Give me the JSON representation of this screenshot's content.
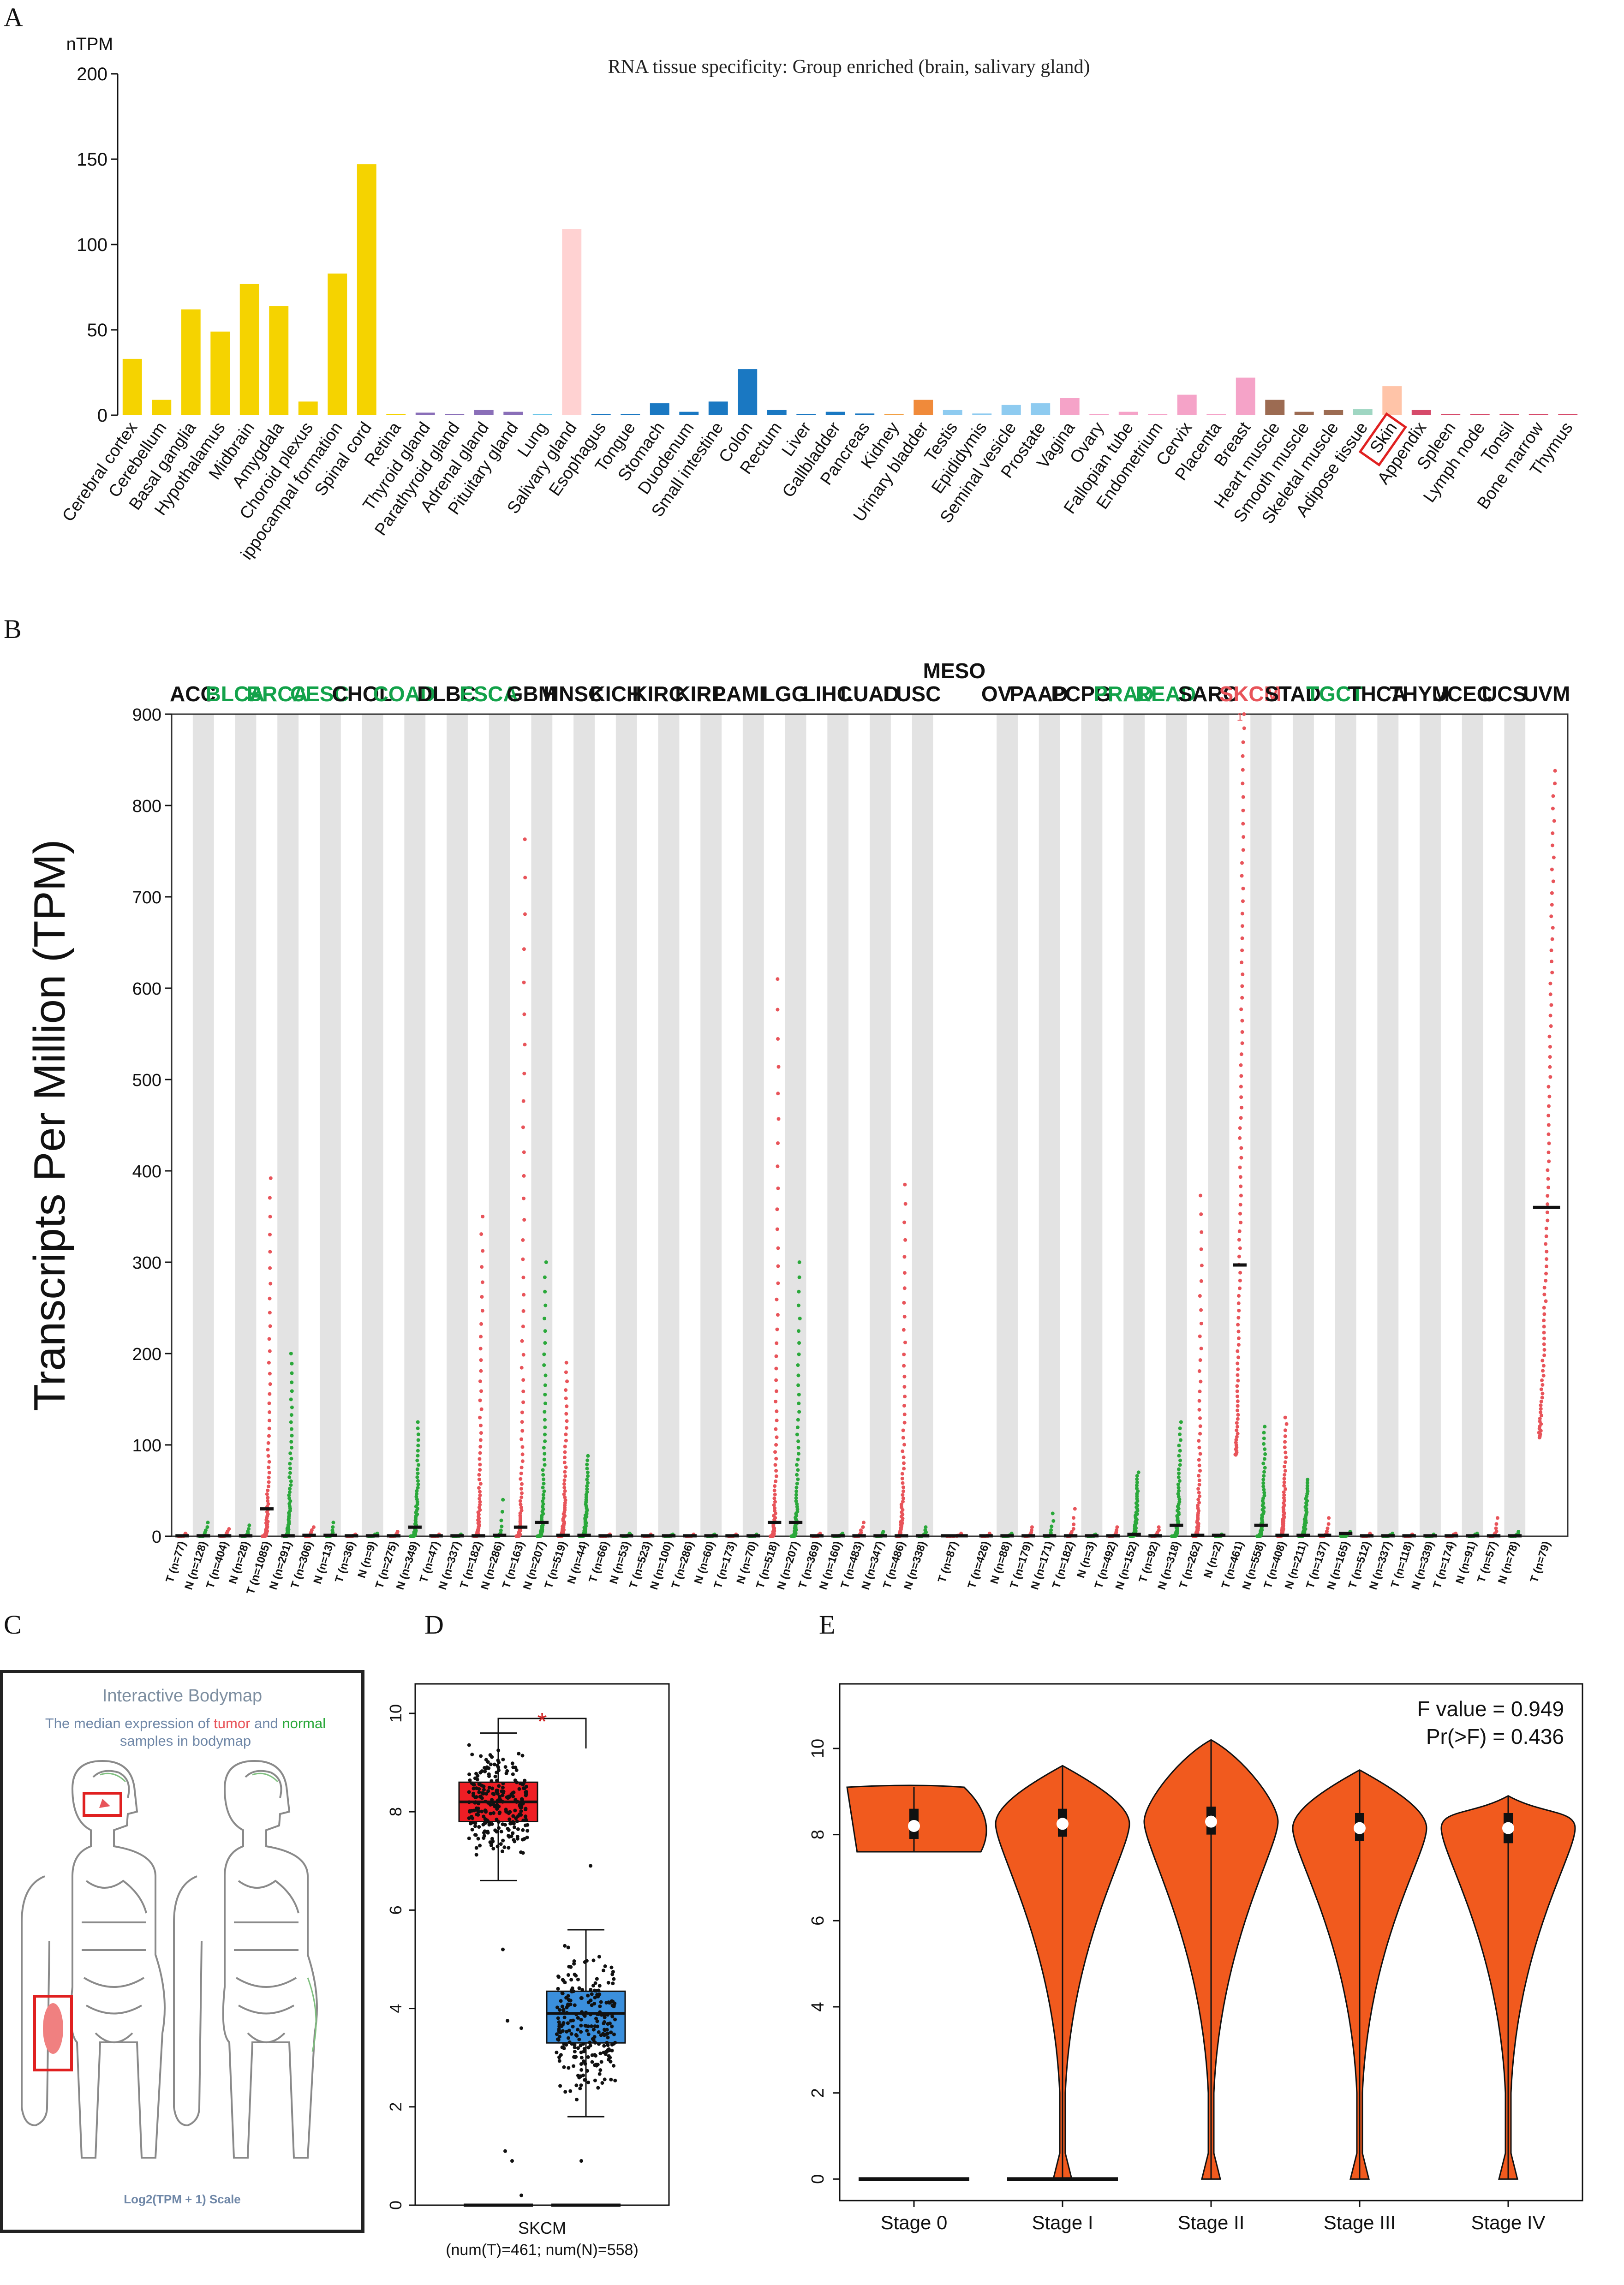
{
  "panels": {
    "a": "A",
    "b": "B",
    "c": "C",
    "d": "D",
    "e": "E"
  },
  "colors": {
    "brain": "#f5d300",
    "salivary": "#ffd2d2",
    "gi": "#1a78c2",
    "tumor_dots": "#e8545a",
    "normal_dots": "#2aa83a",
    "green_label": "#13a24a",
    "red_label": "#e8545a",
    "box_tumor": "#ee1e25",
    "box_normal": "#3b8fdc",
    "violin": "#f15a1e"
  },
  "chart_data": [
    {
      "type": "bar",
      "title": "RNA tissue specificity: Group enriched (brain, salivary gland)",
      "ylabel": "nTPM",
      "ylim": [
        0,
        200
      ],
      "yticks": [
        0,
        50,
        100,
        150,
        200
      ],
      "highlighted_category": "Skin",
      "categories": [
        "Cerebral cortex",
        "Cerebellum",
        "Basal ganglia",
        "Hypothalamus",
        "Midbrain",
        "Amygdala",
        "Choroid plexus",
        "Hippocampal formation",
        "Spinal cord",
        "Retina",
        "Thyroid gland",
        "Parathyroid gland",
        "Adrenal gland",
        "Pituitary gland",
        "Lung",
        "Salivary gland",
        "Esophagus",
        "Tongue",
        "Stomach",
        "Duodenum",
        "Small intestine",
        "Colon",
        "Rectum",
        "Liver",
        "Gallbladder",
        "Pancreas",
        "Kidney",
        "Urinary bladder",
        "Testis",
        "Epididymis",
        "Seminal vesicle",
        "Prostate",
        "Vagina",
        "Ovary",
        "Fallopian tube",
        "Endometrium",
        "Cervix",
        "Placenta",
        "Breast",
        "Heart muscle",
        "Smooth muscle",
        "Skeletal muscle",
        "Adipose tissue",
        "Skin",
        "Appendix",
        "Spleen",
        "Lymph node",
        "Tonsil",
        "Bone marrow",
        "Thymus"
      ],
      "tick_labels": [
        "Cerebral cortex",
        "Cerebellum",
        "Basal ganglia",
        "Hypothalamus",
        "Midbrain",
        "Amygdala",
        "Choroid plexus",
        "ippocampal formation",
        "Spinal cord",
        "Retina",
        "Thyroid gland",
        "Parathyroid gland",
        "Adrenal gland",
        "Pituitary gland",
        "Lung",
        "Salivary gland",
        "Esophagus",
        "Tongue",
        "Stomach",
        "Duodenum",
        "Small intestine",
        "Colon",
        "Rectum",
        "Liver",
        "Gallbladder",
        "Pancreas",
        "Kidney",
        "Urinary bladder",
        "Testis",
        "Epididymis",
        "Seminal vesicle",
        "Prostate",
        "Vagina",
        "Ovary",
        "Fallopian tube",
        "Endometrium",
        "Cervix",
        "Placenta",
        "Breast",
        "Heart muscle",
        "Smooth muscle",
        "Skeletal muscle",
        "Adipose tissue",
        "Skin",
        "Appendix",
        "Spleen",
        "Lymph node",
        "Tonsil",
        "Bone marrow",
        "Thymus"
      ],
      "values": [
        33,
        9,
        62,
        49,
        77,
        64,
        8,
        83,
        147,
        0,
        1.5,
        0.5,
        3,
        2,
        0.5,
        109,
        0.5,
        0.5,
        7,
        2,
        8,
        27,
        3,
        0.5,
        2,
        1,
        0.5,
        9,
        3,
        1,
        6,
        7,
        10,
        0.5,
        2,
        0.5,
        12,
        0.5,
        22,
        9,
        2,
        3,
        3.5,
        17,
        3,
        0.5,
        0.5,
        0.5,
        0.5,
        0.5
      ],
      "bar_colors": [
        "#f5d300",
        "#f5d300",
        "#f5d300",
        "#f5d300",
        "#f5d300",
        "#f5d300",
        "#f5d300",
        "#f5d300",
        "#f5d300",
        "#f5d300",
        "#8a6fb8",
        "#8a6fb8",
        "#8a6fb8",
        "#8a6fb8",
        "#6cc6e8",
        "#ffd2d2",
        "#1a78c2",
        "#1a78c2",
        "#1a78c2",
        "#1a78c2",
        "#1a78c2",
        "#1a78c2",
        "#1a78c2",
        "#1a78c2",
        "#1a78c2",
        "#1a78c2",
        "#f2a044",
        "#f08a3a",
        "#8ecbf0",
        "#8ecbf0",
        "#8ecbf0",
        "#8ecbf0",
        "#f5a3c8",
        "#f5a3c8",
        "#f5a3c8",
        "#f5a3c8",
        "#f5a3c8",
        "#f5a3c8",
        "#f5a3c8",
        "#9c6b52",
        "#9c6b52",
        "#9c6b52",
        "#9fd6c2",
        "#ffc4a8",
        "#d64a6a",
        "#d64a6a",
        "#d64a6a",
        "#d64a6a",
        "#d64a6a",
        "#d64a6a"
      ]
    },
    {
      "type": "scatter",
      "ylabel": "Transcripts Per Million (TPM)",
      "ylim": [
        0,
        900
      ],
      "yticks": [
        0,
        100,
        200,
        300,
        400,
        500,
        600,
        700,
        800,
        900
      ],
      "cancers": [
        {
          "name": "ACC",
          "color": "black",
          "slots": [
            "T (n=77)",
            "N (n=128)"
          ],
          "median_t": 0.5,
          "median_n": 0.5,
          "max_t": 3,
          "max_n": 15
        },
        {
          "name": "BLCA",
          "color": "green",
          "slots": [
            "T (n=404)",
            "N (n=28)"
          ],
          "median_t": 0.5,
          "median_n": 0.5,
          "max_t": 8,
          "max_n": 12
        },
        {
          "name": "BRCA",
          "color": "green",
          "slots": [
            "T (n=1085)",
            "N (n=291)"
          ],
          "median_t": 30,
          "median_n": 0.5,
          "max_t": 392,
          "max_n": 200
        },
        {
          "name": "CESC",
          "color": "green",
          "slots": [
            "T (n=306)",
            "N (n=13)"
          ],
          "median_t": 1,
          "median_n": 1,
          "max_t": 10,
          "max_n": 15
        },
        {
          "name": "CHOL",
          "color": "black",
          "slots": [
            "T (n=36)",
            "N (n=9)"
          ],
          "median_t": 0.5,
          "median_n": 0.5,
          "max_t": 2,
          "max_n": 3
        },
        {
          "name": "COAD",
          "color": "green",
          "slots": [
            "T (n=275)",
            "N (n=349)"
          ],
          "median_t": 0.5,
          "median_n": 10,
          "max_t": 5,
          "max_n": 125
        },
        {
          "name": "DLBC",
          "color": "black",
          "slots": [
            "T (n=47)",
            "N (n=337)"
          ],
          "median_t": 0.5,
          "median_n": 0.5,
          "max_t": 2,
          "max_n": 2
        },
        {
          "name": "ESCA",
          "color": "green",
          "slots": [
            "T (n=182)",
            "N (n=286)"
          ],
          "median_t": 0.5,
          "median_n": 1,
          "max_t": 350,
          "max_n": 40
        },
        {
          "name": "GBM",
          "color": "black",
          "slots": [
            "T (n=163)",
            "N (n=207)"
          ],
          "median_t": 10,
          "median_n": 15,
          "max_t": 763,
          "max_n": 300
        },
        {
          "name": "HNSC",
          "color": "black",
          "slots": [
            "T (n=519)",
            "N (n=44)"
          ],
          "median_t": 1,
          "median_n": 1,
          "max_t": 190,
          "max_n": 88
        },
        {
          "name": "KICH",
          "color": "black",
          "slots": [
            "T (n=66)",
            "N (n=53)"
          ],
          "median_t": 0.5,
          "median_n": 0.5,
          "max_t": 2,
          "max_n": 3
        },
        {
          "name": "KIRC",
          "color": "black",
          "slots": [
            "T (n=523)",
            "N (n=100)"
          ],
          "median_t": 0.5,
          "median_n": 0.5,
          "max_t": 2,
          "max_n": 2
        },
        {
          "name": "KIRP",
          "color": "black",
          "slots": [
            "T (n=286)",
            "N (n=60)"
          ],
          "median_t": 0.5,
          "median_n": 0.5,
          "max_t": 2,
          "max_n": 2
        },
        {
          "name": "LAML",
          "color": "black",
          "slots": [
            "T (n=173)",
            "N (n=70)"
          ],
          "median_t": 0.5,
          "median_n": 0.5,
          "max_t": 2,
          "max_n": 2
        },
        {
          "name": "LGG",
          "color": "black",
          "slots": [
            "T (n=518)",
            "N (n=207)"
          ],
          "median_t": 15,
          "median_n": 15,
          "max_t": 610,
          "max_n": 300
        },
        {
          "name": "LIHC",
          "color": "black",
          "slots": [
            "T (n=369)",
            "N (n=160)"
          ],
          "median_t": 0.5,
          "median_n": 0.5,
          "max_t": 3,
          "max_n": 3
        },
        {
          "name": "LUAD",
          "color": "black",
          "slots": [
            "T (n=483)",
            "N (n=347)"
          ],
          "median_t": 0.5,
          "median_n": 0.5,
          "max_t": 15,
          "max_n": 5
        },
        {
          "name": "LUSC",
          "color": "black",
          "slots": [
            "T (n=486)",
            "N (n=338)"
          ],
          "median_t": 0.5,
          "median_n": 0.5,
          "max_t": 385,
          "max_n": 10
        },
        {
          "name": "MESO",
          "color": "black",
          "slots": [
            "T (n=87)"
          ],
          "median_t": 0.5,
          "max_t": 3
        },
        {
          "name": "OV",
          "color": "black",
          "slots": [
            "T (n=426)",
            "N (n=88)"
          ],
          "median_t": 0.5,
          "median_n": 0.5,
          "max_t": 3,
          "max_n": 3
        },
        {
          "name": "PAAD",
          "color": "black",
          "slots": [
            "T (n=179)",
            "N (n=171)"
          ],
          "median_t": 0.5,
          "median_n": 0.5,
          "max_t": 10,
          "max_n": 25
        },
        {
          "name": "PCPG",
          "color": "black",
          "slots": [
            "T (n=182)",
            "N (n=3)"
          ],
          "median_t": 0.5,
          "median_n": 0.5,
          "max_t": 30,
          "max_n": 2
        },
        {
          "name": "PRAD",
          "color": "green",
          "slots": [
            "T (n=492)",
            "N (n=152)"
          ],
          "median_t": 0.5,
          "median_n": 2,
          "max_t": 10,
          "max_n": 70
        },
        {
          "name": "READ",
          "color": "green",
          "slots": [
            "T (n=92)",
            "N (n=318)"
          ],
          "median_t": 0.5,
          "median_n": 12,
          "max_t": 10,
          "max_n": 125
        },
        {
          "name": "SARC",
          "color": "black",
          "slots": [
            "T (n=262)",
            "N (n=2)"
          ],
          "median_t": 1,
          "median_n": 1,
          "max_t": 373,
          "max_n": 2
        },
        {
          "name": "SKCM",
          "color": "red",
          "slots": [
            "T (n=461)",
            "N (n=558)"
          ],
          "median_t": 297,
          "median_n": 12,
          "max_t": 900,
          "max_n": 120
        },
        {
          "name": "STAD",
          "color": "black",
          "slots": [
            "T (n=408)",
            "N (n=211)"
          ],
          "median_t": 1,
          "median_n": 1,
          "max_t": 130,
          "max_n": 62
        },
        {
          "name": "TGCT",
          "color": "green",
          "slots": [
            "T (n=137)",
            "N (n=165)"
          ],
          "median_t": 1,
          "median_n": 3,
          "max_t": 20,
          "max_n": 5
        },
        {
          "name": "THCA",
          "color": "black",
          "slots": [
            "T (n=512)",
            "N (n=337)"
          ],
          "median_t": 0.5,
          "median_n": 0.5,
          "max_t": 3,
          "max_n": 3
        },
        {
          "name": "THYM",
          "color": "black",
          "slots": [
            "T (n=118)",
            "N (n=339)"
          ],
          "median_t": 0.5,
          "median_n": 0.5,
          "max_t": 2,
          "max_n": 2
        },
        {
          "name": "UCEC",
          "color": "black",
          "slots": [
            "T (n=174)",
            "N (n=91)"
          ],
          "median_t": 0.5,
          "median_n": 0.5,
          "max_t": 3,
          "max_n": 3
        },
        {
          "name": "UCS",
          "color": "black",
          "slots": [
            "T (n=57)",
            "N (n=78)"
          ],
          "median_t": 0.5,
          "median_n": 0.5,
          "max_t": 20,
          "max_n": 5
        },
        {
          "name": "UVM",
          "color": "black",
          "slots": [
            "T (n=79)"
          ],
          "median_t": 360,
          "max_t": 838
        }
      ]
    },
    {
      "type": "box",
      "xlabel": "SKCM",
      "xsub": "(num(T)=461; num(N)=558)",
      "ylim": [
        0,
        10.6
      ],
      "yticks": [
        0,
        2,
        4,
        6,
        8,
        10
      ],
      "significance": "*",
      "groups": [
        {
          "name": "Tumor",
          "q1": 7.8,
          "median": 8.2,
          "q3": 8.6,
          "whisker_low": 6.6,
          "whisker_high": 9.6,
          "n": 461
        },
        {
          "name": "Normal",
          "q1": 3.3,
          "median": 3.9,
          "q3": 4.35,
          "whisker_low": 1.8,
          "whisker_high": 5.6,
          "n": 558
        }
      ]
    },
    {
      "type": "violin",
      "categories": [
        "Stage 0",
        "Stage I",
        "Stage II",
        "Stage III",
        "Stage IV"
      ],
      "ylim": [
        -0.5,
        11.5
      ],
      "yticks": [
        0,
        2,
        4,
        6,
        8,
        10
      ],
      "f_value": "F value = 0.949",
      "pr_value": "Pr(>F) = 0.436",
      "medians": [
        8.2,
        8.25,
        8.3,
        8.15,
        8.15
      ],
      "q1": [
        7.9,
        7.95,
        8.0,
        7.85,
        7.8
      ],
      "q3": [
        8.6,
        8.6,
        8.65,
        8.5,
        8.5
      ],
      "min": [
        7.6,
        0,
        0,
        0,
        0
      ],
      "max": [
        9.1,
        9.6,
        10.2,
        9.5,
        8.9
      ]
    }
  ],
  "bodymap": {
    "title": "Interactive Bodymap",
    "subtitle_pre": "The median expression of ",
    "subtitle_tumor": "tumor",
    "subtitle_mid": " and ",
    "subtitle_normal": "normal",
    "subtitle_post": "samples in bodymap",
    "scale": "Log2(TPM + 1) Scale"
  }
}
